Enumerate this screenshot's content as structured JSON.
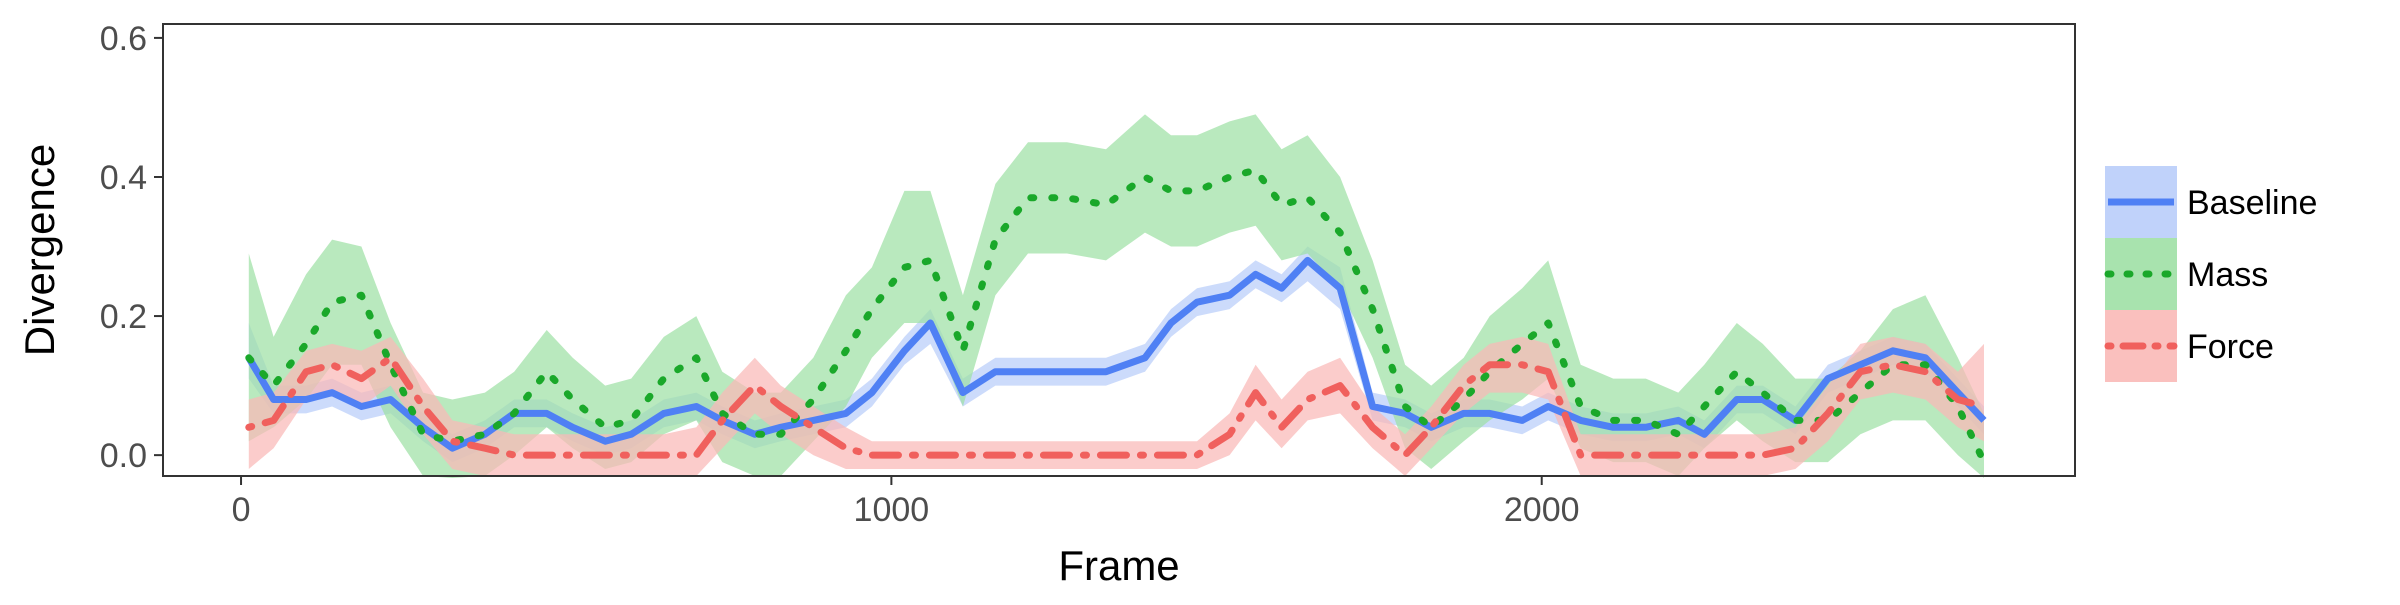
{
  "chart_data": {
    "type": "line",
    "title": "",
    "xlabel": "Frame",
    "ylabel": "Divergence",
    "xlim": [
      -120,
      2820
    ],
    "ylim": [
      -0.03,
      0.62
    ],
    "x_ticks": [
      0,
      1000,
      2000
    ],
    "x_tick_labels": [
      "0",
      "1000",
      "2000"
    ],
    "y_ticks": [
      0.0,
      0.2,
      0.4,
      0.6
    ],
    "y_tick_labels": [
      "0.0",
      "0.2",
      "0.4",
      "0.6"
    ],
    "grid": false,
    "legend_position": "right",
    "x": [
      12,
      50,
      100,
      140,
      185,
      230,
      280,
      325,
      375,
      420,
      470,
      510,
      560,
      600,
      650,
      700,
      740,
      790,
      830,
      880,
      930,
      970,
      1020,
      1060,
      1110,
      1160,
      1210,
      1270,
      1330,
      1390,
      1430,
      1470,
      1520,
      1560,
      1600,
      1640,
      1690,
      1740,
      1790,
      1830,
      1880,
      1920,
      1970,
      2010,
      2060,
      2110,
      2160,
      2210,
      2250,
      2300,
      2340,
      2390,
      2440,
      2490,
      2540,
      2590,
      2640,
      2680
    ],
    "series": [
      {
        "name": "Baseline",
        "color": "#4f80f4",
        "ribbon_color": "#b9cdfa",
        "dash": "solid",
        "values": [
          0.14,
          0.08,
          0.08,
          0.09,
          0.07,
          0.08,
          0.04,
          0.01,
          0.03,
          0.06,
          0.06,
          0.04,
          0.02,
          0.03,
          0.06,
          0.07,
          0.05,
          0.03,
          0.04,
          0.05,
          0.06,
          0.09,
          0.15,
          0.19,
          0.09,
          0.12,
          0.12,
          0.12,
          0.12,
          0.14,
          0.19,
          0.22,
          0.23,
          0.26,
          0.24,
          0.28,
          0.24,
          0.07,
          0.06,
          0.04,
          0.06,
          0.06,
          0.05,
          0.07,
          0.05,
          0.04,
          0.04,
          0.05,
          0.03,
          0.08,
          0.08,
          0.05,
          0.11,
          0.13,
          0.15,
          0.14,
          0.09,
          0.05
        ],
        "lower": [
          0.11,
          0.06,
          0.06,
          0.07,
          0.05,
          0.06,
          0.02,
          -0.01,
          0.01,
          0.04,
          0.04,
          0.02,
          0.0,
          0.01,
          0.04,
          0.05,
          0.03,
          0.01,
          0.02,
          0.03,
          0.04,
          0.07,
          0.13,
          0.16,
          0.07,
          0.1,
          0.1,
          0.1,
          0.1,
          0.12,
          0.17,
          0.2,
          0.21,
          0.24,
          0.22,
          0.25,
          0.21,
          0.05,
          0.04,
          0.02,
          0.04,
          0.04,
          0.03,
          0.05,
          0.03,
          0.02,
          0.02,
          0.03,
          0.01,
          0.06,
          0.06,
          0.03,
          0.09,
          0.11,
          0.13,
          0.12,
          0.07,
          0.03
        ],
        "upper": [
          0.19,
          0.1,
          0.1,
          0.11,
          0.09,
          0.1,
          0.06,
          0.03,
          0.05,
          0.08,
          0.08,
          0.06,
          0.04,
          0.05,
          0.08,
          0.09,
          0.07,
          0.05,
          0.06,
          0.07,
          0.08,
          0.11,
          0.17,
          0.21,
          0.11,
          0.14,
          0.14,
          0.14,
          0.14,
          0.16,
          0.21,
          0.24,
          0.25,
          0.28,
          0.26,
          0.3,
          0.27,
          0.09,
          0.08,
          0.06,
          0.08,
          0.08,
          0.07,
          0.09,
          0.07,
          0.06,
          0.06,
          0.07,
          0.05,
          0.1,
          0.1,
          0.07,
          0.13,
          0.15,
          0.17,
          0.16,
          0.11,
          0.07
        ]
      },
      {
        "name": "Mass",
        "color": "#1aa82a",
        "ribbon_color": "#9ee0a5",
        "dash": "dotted",
        "values": [
          0.14,
          0.1,
          0.16,
          0.22,
          0.23,
          0.13,
          0.03,
          0.02,
          0.03,
          0.06,
          0.12,
          0.08,
          0.04,
          0.05,
          0.11,
          0.14,
          0.06,
          0.03,
          0.03,
          0.08,
          0.15,
          0.21,
          0.27,
          0.28,
          0.15,
          0.31,
          0.37,
          0.37,
          0.36,
          0.4,
          0.38,
          0.38,
          0.4,
          0.41,
          0.36,
          0.37,
          0.32,
          0.21,
          0.07,
          0.04,
          0.08,
          0.12,
          0.16,
          0.19,
          0.07,
          0.05,
          0.05,
          0.03,
          0.07,
          0.12,
          0.09,
          0.05,
          0.05,
          0.09,
          0.13,
          0.13,
          0.07,
          -0.01
        ],
        "lower": [
          0.02,
          0.04,
          0.08,
          0.13,
          0.13,
          0.04,
          -0.03,
          -0.04,
          -0.03,
          0.0,
          0.04,
          0.01,
          -0.02,
          -0.01,
          0.03,
          0.05,
          -0.01,
          -0.03,
          -0.03,
          0.02,
          0.07,
          0.14,
          0.19,
          0.19,
          0.07,
          0.23,
          0.29,
          0.29,
          0.28,
          0.32,
          0.3,
          0.3,
          0.32,
          0.33,
          0.28,
          0.29,
          0.24,
          0.14,
          0.01,
          -0.02,
          0.02,
          0.05,
          0.08,
          0.11,
          0.01,
          -0.01,
          -0.01,
          -0.03,
          0.01,
          0.05,
          0.02,
          -0.01,
          -0.01,
          0.03,
          0.05,
          0.05,
          0.0,
          -0.06
        ],
        "upper": [
          0.29,
          0.17,
          0.26,
          0.31,
          0.3,
          0.19,
          0.09,
          0.08,
          0.09,
          0.12,
          0.18,
          0.14,
          0.1,
          0.11,
          0.17,
          0.2,
          0.12,
          0.09,
          0.09,
          0.14,
          0.23,
          0.27,
          0.38,
          0.38,
          0.23,
          0.39,
          0.45,
          0.45,
          0.44,
          0.49,
          0.46,
          0.46,
          0.48,
          0.49,
          0.44,
          0.46,
          0.4,
          0.28,
          0.13,
          0.1,
          0.14,
          0.2,
          0.24,
          0.28,
          0.13,
          0.11,
          0.11,
          0.09,
          0.13,
          0.19,
          0.16,
          0.11,
          0.11,
          0.15,
          0.21,
          0.23,
          0.14,
          0.06
        ]
      },
      {
        "name": "Force",
        "color": "#f0605d",
        "ribbon_color": "#f9b9b7",
        "dash": "dotdash",
        "values": [
          0.04,
          0.05,
          0.12,
          0.13,
          0.11,
          0.14,
          0.07,
          0.02,
          0.01,
          0.0,
          0.0,
          0.0,
          0.0,
          0.0,
          0.0,
          0.0,
          0.05,
          0.1,
          0.07,
          0.04,
          0.01,
          0.0,
          0.0,
          0.0,
          0.0,
          0.0,
          0.0,
          0.0,
          0.0,
          0.0,
          0.0,
          0.0,
          0.03,
          0.09,
          0.04,
          0.08,
          0.1,
          0.04,
          0.0,
          0.04,
          0.1,
          0.13,
          0.13,
          0.12,
          0.0,
          0.0,
          0.0,
          0.0,
          0.0,
          0.0,
          0.0,
          0.01,
          0.06,
          0.12,
          0.13,
          0.12,
          0.08,
          0.07
        ],
        "lower": [
          -0.02,
          0.01,
          0.08,
          0.09,
          0.07,
          0.1,
          0.03,
          -0.02,
          -0.03,
          -0.03,
          -0.03,
          -0.03,
          -0.03,
          -0.03,
          -0.03,
          -0.03,
          0.01,
          0.06,
          0.03,
          0.0,
          -0.02,
          -0.02,
          -0.02,
          -0.02,
          -0.02,
          -0.02,
          -0.02,
          -0.02,
          -0.02,
          -0.02,
          -0.02,
          -0.02,
          0.0,
          0.05,
          0.01,
          0.05,
          0.06,
          0.01,
          -0.03,
          0.01,
          0.06,
          0.09,
          0.09,
          0.08,
          -0.03,
          -0.03,
          -0.03,
          -0.03,
          -0.03,
          -0.03,
          -0.03,
          -0.02,
          0.02,
          0.08,
          0.09,
          0.08,
          0.04,
          0.02
        ],
        "upper": [
          0.08,
          0.09,
          0.15,
          0.16,
          0.15,
          0.17,
          0.11,
          0.05,
          0.04,
          0.03,
          0.03,
          0.03,
          0.03,
          0.03,
          0.03,
          0.04,
          0.09,
          0.14,
          0.1,
          0.07,
          0.04,
          0.02,
          0.02,
          0.02,
          0.02,
          0.02,
          0.02,
          0.02,
          0.02,
          0.02,
          0.02,
          0.02,
          0.06,
          0.13,
          0.08,
          0.12,
          0.14,
          0.07,
          0.03,
          0.07,
          0.13,
          0.16,
          0.17,
          0.16,
          0.03,
          0.03,
          0.03,
          0.03,
          0.03,
          0.03,
          0.03,
          0.04,
          0.1,
          0.16,
          0.17,
          0.16,
          0.12,
          0.16
        ]
      }
    ]
  }
}
